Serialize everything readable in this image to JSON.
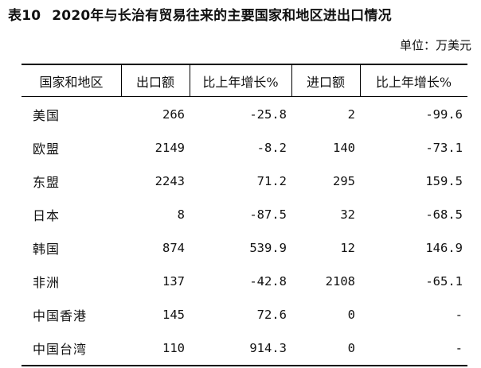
{
  "title": {
    "number": "表10",
    "text": "2020年与长治有贸易往来的主要国家和地区进出口情况"
  },
  "unit": "单位：万美元",
  "table": {
    "headers": [
      "国家和地区",
      "出口额",
      "比上年增长%",
      "进口额",
      "比上年增长%"
    ],
    "rows": [
      [
        "美国",
        "266",
        "-25.8",
        "2",
        "-99.6"
      ],
      [
        "欧盟",
        "2149",
        "-8.2",
        "140",
        "-73.1"
      ],
      [
        "东盟",
        "2243",
        "71.2",
        "295",
        "159.5"
      ],
      [
        "日本",
        "8",
        "-87.5",
        "32",
        "-68.5"
      ],
      [
        "韩国",
        "874",
        "539.9",
        "12",
        "146.9"
      ],
      [
        "非洲",
        "137",
        "-42.8",
        "2108",
        "-65.1"
      ],
      [
        "中国香港",
        "145",
        "72.6",
        "0",
        "-"
      ],
      [
        "中国台湾",
        "110",
        "914.3",
        "0",
        "-"
      ]
    ]
  }
}
